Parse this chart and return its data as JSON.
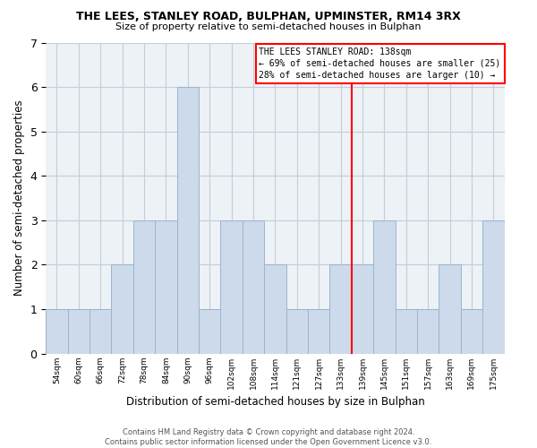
{
  "title": "THE LEES, STANLEY ROAD, BULPHAN, UPMINSTER, RM14 3RX",
  "subtitle": "Size of property relative to semi-detached houses in Bulphan",
  "xlabel": "Distribution of semi-detached houses by size in Bulphan",
  "ylabel": "Number of semi-detached properties",
  "bin_labels": [
    "54sqm",
    "60sqm",
    "66sqm",
    "72sqm",
    "78sqm",
    "84sqm",
    "90sqm",
    "96sqm",
    "102sqm",
    "108sqm",
    "114sqm",
    "121sqm",
    "127sqm",
    "133sqm",
    "139sqm",
    "145sqm",
    "151sqm",
    "157sqm",
    "163sqm",
    "169sqm",
    "175sqm"
  ],
  "bar_heights": [
    1,
    1,
    1,
    2,
    3,
    3,
    6,
    1,
    3,
    3,
    2,
    1,
    1,
    2,
    2,
    3,
    1,
    1,
    2,
    1,
    3
  ],
  "bar_color": "#ccdaeb",
  "bar_edgecolor": "#9ab5cc",
  "vline_label": "THE LEES STANLEY ROAD: 138sqm",
  "smaller_pct": "69%",
  "smaller_n": 25,
  "larger_pct": "28%",
  "larger_n": 10,
  "ylim": [
    0,
    7
  ],
  "yticks": [
    0,
    1,
    2,
    3,
    4,
    5,
    6,
    7
  ],
  "footer_line1": "Contains HM Land Registry data © Crown copyright and database right 2024.",
  "footer_line2": "Contains public sector information licensed under the Open Government Licence v3.0.",
  "bg_color": "#edf2f7",
  "grid_color": "#c5cdd6"
}
